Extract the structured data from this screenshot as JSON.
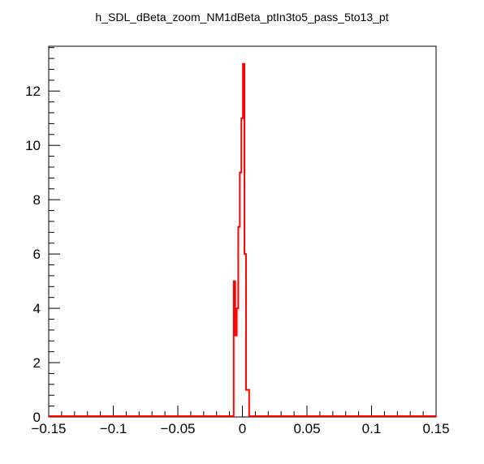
{
  "chart_data": {
    "type": "histogram-step",
    "title": "h_SDL_dBeta_zoom_NM1dBeta_ptIn3to5_pass_5to13_pt",
    "xlabel": "",
    "ylabel": "",
    "xlim": [
      -0.15,
      0.15
    ],
    "ylim": [
      0,
      13.65
    ],
    "x_ticks": [
      -0.15,
      -0.1,
      -0.05,
      0,
      0.05,
      0.1,
      0.15
    ],
    "x_tick_labels": [
      "−0.15",
      "−0.1",
      "−0.05",
      "0",
      "0.05",
      "0.1",
      "0.15"
    ],
    "y_ticks": [
      0,
      2,
      4,
      6,
      8,
      10,
      12
    ],
    "y_tick_labels": [
      "0",
      "2",
      "4",
      "6",
      "8",
      "10",
      "12"
    ],
    "grid": false,
    "legend": "none",
    "series": [
      {
        "color": "#ff0000",
        "bins": [
          {
            "x0": -0.0068,
            "x1": -0.0056,
            "y": 5
          },
          {
            "x0": -0.0056,
            "x1": -0.0044,
            "y": 3
          },
          {
            "x0": -0.0044,
            "x1": -0.0032,
            "y": 4
          },
          {
            "x0": -0.0032,
            "x1": -0.002,
            "y": 7
          },
          {
            "x0": -0.002,
            "x1": -0.0008,
            "y": 9
          },
          {
            "x0": -0.0008,
            "x1": 0.0004,
            "y": 11
          },
          {
            "x0": 0.0004,
            "x1": 0.0016,
            "y": 13
          },
          {
            "x0": 0.0016,
            "x1": 0.0028,
            "y": 6
          },
          {
            "x0": 0.0028,
            "x1": 0.004,
            "y": 1
          },
          {
            "x0": 0.004,
            "x1": 0.0052,
            "y": 1
          }
        ]
      }
    ]
  }
}
